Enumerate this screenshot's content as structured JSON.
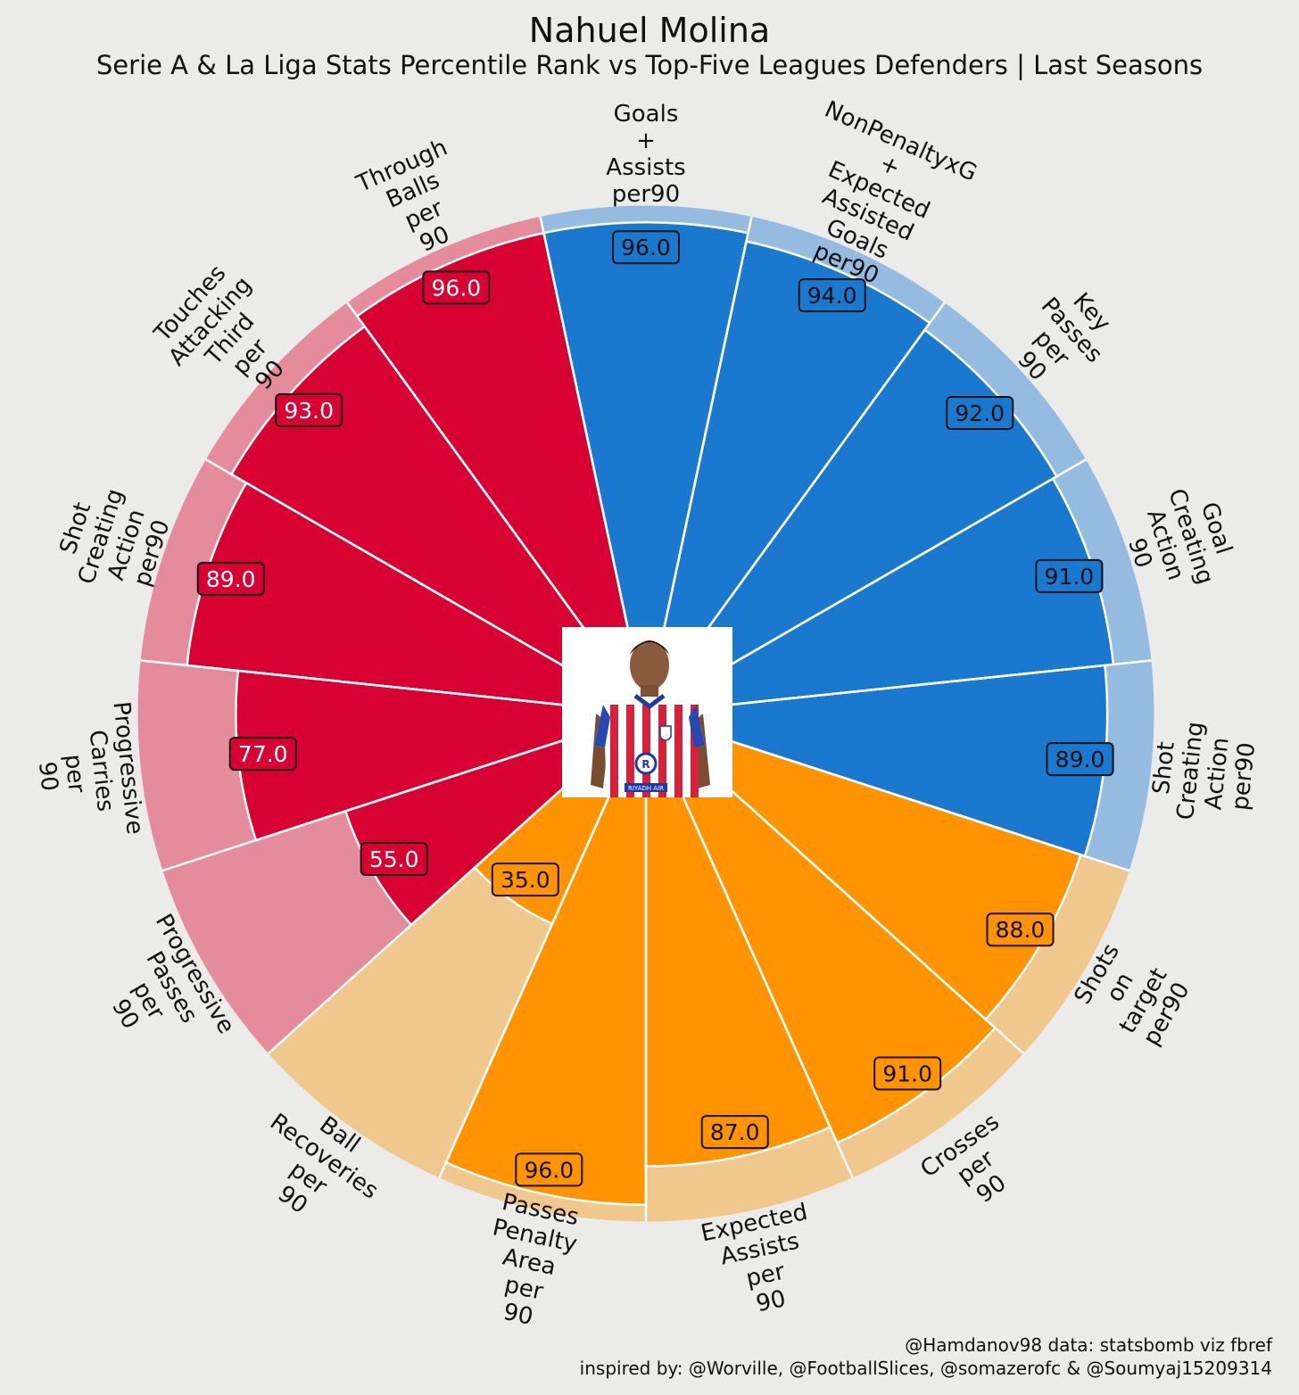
{
  "header": {
    "title": "Nahuel Molina",
    "subtitle": "Serie A & La Liga Stats Percentile Rank vs Top-Five Leagues Defenders | Last Seasons"
  },
  "footer": {
    "credit_line1": "@Hamdanov98 data: statsbomb viz fbref",
    "credit_line2": "inspired by: @Worville, @FootballSlices, @somazerofc & @Soumyaj15209314"
  },
  "center_image": {
    "description": "player-photo",
    "shirt_text": "RIYADH AIR"
  },
  "colors": {
    "background": "#ebebe9",
    "attack": "#1a78cf",
    "attack_light": "#96bbe0",
    "possession": "#ff9300",
    "possession_light": "#f0c78c",
    "defense": "#d70232",
    "defense_light": "#e48c9b"
  },
  "chart_data": {
    "type": "pizza",
    "scale": [
      0,
      100
    ],
    "groups": [
      {
        "name": "attacking",
        "color": "#1a78cf",
        "light": "#96bbe0"
      },
      {
        "name": "possession",
        "color": "#ff9300",
        "light": "#f0c78c"
      },
      {
        "name": "defending",
        "color": "#d70232",
        "light": "#e48c9b"
      }
    ],
    "slices": [
      {
        "label": [
          "Goals",
          "+",
          "Assists",
          "per90"
        ],
        "value": 96.0,
        "group": "attacking"
      },
      {
        "label": [
          "NonPenaltyxG",
          "+",
          "Expected",
          "Assisted",
          "Goals",
          "per90"
        ],
        "value": 94.0,
        "group": "attacking"
      },
      {
        "label": [
          "Key",
          "Passes",
          "per",
          "90"
        ],
        "value": 92.0,
        "group": "attacking"
      },
      {
        "label": [
          "Goal",
          "Creating",
          "Action",
          "90"
        ],
        "value": 91.0,
        "group": "attacking"
      },
      {
        "label": [
          "Shot",
          "Creating",
          "Action",
          "per90"
        ],
        "value": 89.0,
        "group": "attacking"
      },
      {
        "label": [
          "Shots",
          "on",
          "target",
          "per90"
        ],
        "value": 88.0,
        "group": "possession"
      },
      {
        "label": [
          "Crosses",
          "per",
          "90"
        ],
        "value": 91.0,
        "group": "possession"
      },
      {
        "label": [
          "Expected",
          "Assists",
          "per",
          "90"
        ],
        "value": 87.0,
        "group": "possession"
      },
      {
        "label": [
          "Passes",
          "Penalty",
          "Area",
          "per",
          "90"
        ],
        "value": 96.0,
        "group": "possession"
      },
      {
        "label": [
          "Ball",
          "Recoveries",
          "per",
          "90"
        ],
        "value": 35.0,
        "group": "possession"
      },
      {
        "label": [
          "Progressive",
          "Passes",
          "per",
          "90"
        ],
        "value": 55.0,
        "group": "defending"
      },
      {
        "label": [
          "Progressive",
          "Carries",
          "per",
          "90"
        ],
        "value": 77.0,
        "group": "defending"
      },
      {
        "label": [
          "Shot",
          "Creating",
          "Action",
          "per90"
        ],
        "value": 89.0,
        "group": "defending"
      },
      {
        "label": [
          "Touches",
          "Attacking",
          "Third",
          "per",
          "90"
        ],
        "value": 93.0,
        "group": "defending"
      },
      {
        "label": [
          "Through",
          "Balls",
          "per",
          "90"
        ],
        "value": 96.0,
        "group": "defending"
      }
    ],
    "value_format": "one_decimal",
    "start": "top",
    "direction": "clockwise"
  }
}
